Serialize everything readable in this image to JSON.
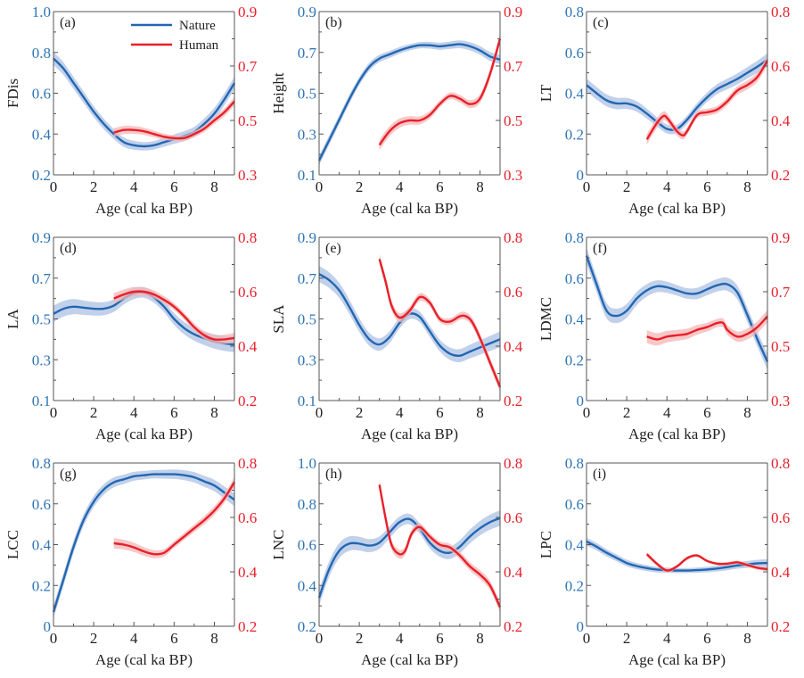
{
  "figure": {
    "legend": {
      "nature": "Nature",
      "human": "Human"
    },
    "colors": {
      "nature": "#2267b3",
      "nature_band": "#b7c9e6",
      "human": "#e8202a",
      "human_band": "#f4b5b5",
      "left_axis": "#2e75b6",
      "right_axis": "#e8202a"
    }
  },
  "chart_data": [
    {
      "type": "line",
      "panel": "(a)",
      "ylabel": "FDis",
      "xlabel": "Age (cal ka BP)",
      "xlim": [
        0,
        9
      ],
      "xticks": [
        0,
        2,
        4,
        6,
        8
      ],
      "ylim_left": [
        0.2,
        1.0
      ],
      "yticks_left": [
        "0.2",
        "0.4",
        "0.6",
        "0.8",
        "1.0"
      ],
      "ylim_right": [
        0.3,
        0.9
      ],
      "yticks_right": [
        "0.3",
        "0.5",
        "0.7",
        "0.9"
      ],
      "legend": "top-right",
      "series": [
        {
          "name": "Nature",
          "axis": "left",
          "x": [
            0,
            0.5,
            1,
            1.5,
            2,
            2.5,
            3,
            3.5,
            4,
            4.5,
            5,
            5.5,
            6,
            6.5,
            7,
            7.5,
            8,
            8.5,
            9
          ],
          "y": [
            0.77,
            0.72,
            0.65,
            0.58,
            0.51,
            0.45,
            0.4,
            0.36,
            0.345,
            0.34,
            0.345,
            0.36,
            0.375,
            0.39,
            0.41,
            0.45,
            0.5,
            0.57,
            0.65
          ],
          "band": 0.02
        },
        {
          "name": "Human",
          "axis": "right",
          "x": [
            3,
            3.5,
            4,
            4.5,
            5,
            5.5,
            6,
            6.5,
            7,
            7.5,
            8,
            8.5,
            9
          ],
          "y": [
            0.455,
            0.465,
            0.465,
            0.46,
            0.45,
            0.44,
            0.435,
            0.435,
            0.45,
            0.47,
            0.5,
            0.53,
            0.57
          ],
          "band": 0.01
        }
      ]
    },
    {
      "type": "line",
      "panel": "(b)",
      "ylabel": "Height",
      "xlabel": "Age (cal ka BP)",
      "xlim": [
        0,
        9
      ],
      "xticks": [
        0,
        2,
        4,
        6,
        8
      ],
      "ylim_left": [
        0.1,
        0.9
      ],
      "yticks_left": [
        "0.1",
        "0.3",
        "0.5",
        "0.7",
        "0.9"
      ],
      "ylim_right": [
        0.3,
        0.9
      ],
      "yticks_right": [
        "0.3",
        "0.5",
        "0.7",
        "0.9"
      ],
      "series": [
        {
          "name": "Nature",
          "axis": "left",
          "x": [
            0,
            0.5,
            1,
            1.5,
            2,
            2.5,
            3,
            3.5,
            4,
            4.5,
            5,
            5.5,
            6,
            6.5,
            7,
            7.5,
            8,
            8.5,
            9
          ],
          "y": [
            0.17,
            0.27,
            0.37,
            0.47,
            0.56,
            0.63,
            0.67,
            0.69,
            0.71,
            0.725,
            0.735,
            0.735,
            0.73,
            0.735,
            0.74,
            0.73,
            0.71,
            0.68,
            0.665
          ],
          "band": 0.015
        },
        {
          "name": "Human",
          "axis": "right",
          "x": [
            3,
            3.5,
            4,
            4.5,
            5,
            5.5,
            6,
            6.5,
            7,
            7.5,
            8,
            8.5,
            9
          ],
          "y": [
            0.41,
            0.46,
            0.49,
            0.5,
            0.5,
            0.52,
            0.56,
            0.59,
            0.58,
            0.56,
            0.58,
            0.67,
            0.8
          ],
          "band": 0.012
        }
      ]
    },
    {
      "type": "line",
      "panel": "(c)",
      "ylabel": "LT",
      "xlabel": "Age (cal ka BP)",
      "xlim": [
        0,
        9
      ],
      "xticks": [
        0,
        2,
        4,
        6,
        8
      ],
      "ylim_left": [
        0,
        0.8
      ],
      "yticks_left": [
        "0",
        "0.2",
        "0.4",
        "0.6",
        "0.8"
      ],
      "ylim_right": [
        0.2,
        0.8
      ],
      "yticks_right": [
        "0.2",
        "0.4",
        "0.6",
        "0.8"
      ],
      "series": [
        {
          "name": "Nature",
          "axis": "left",
          "x": [
            0,
            0.5,
            1,
            1.5,
            2,
            2.5,
            3,
            3.5,
            4,
            4.5,
            5,
            5.5,
            6,
            6.5,
            7,
            7.5,
            8,
            8.5,
            9
          ],
          "y": [
            0.44,
            0.4,
            0.365,
            0.35,
            0.35,
            0.335,
            0.3,
            0.26,
            0.225,
            0.225,
            0.27,
            0.33,
            0.38,
            0.42,
            0.445,
            0.47,
            0.5,
            0.53,
            0.565
          ],
          "band": 0.02
        },
        {
          "name": "Human",
          "axis": "right",
          "x": [
            3,
            3.5,
            3.8,
            4,
            4.5,
            4.8,
            5,
            5.5,
            6,
            6.5,
            7,
            7.5,
            8,
            8.5,
            9
          ],
          "y": [
            0.33,
            0.39,
            0.415,
            0.41,
            0.36,
            0.345,
            0.36,
            0.42,
            0.43,
            0.44,
            0.47,
            0.51,
            0.53,
            0.56,
            0.62
          ],
          "band": 0.012
        }
      ]
    },
    {
      "type": "line",
      "panel": "(d)",
      "ylabel": "LA",
      "xlabel": "Age (cal ka BP)",
      "xlim": [
        0,
        9
      ],
      "xticks": [
        0,
        2,
        4,
        6,
        8
      ],
      "ylim_left": [
        0.1,
        0.9
      ],
      "yticks_left": [
        "0.1",
        "0.3",
        "0.5",
        "0.7",
        "0.9"
      ],
      "ylim_right": [
        0.2,
        0.8
      ],
      "yticks_right": [
        "0.2",
        "0.4",
        "0.6",
        "0.8"
      ],
      "series": [
        {
          "name": "Nature",
          "axis": "left",
          "x": [
            0,
            0.5,
            1,
            1.5,
            2,
            2.5,
            3,
            3.5,
            4,
            4.5,
            5,
            5.5,
            6,
            6.5,
            7,
            7.5,
            8,
            8.5,
            9
          ],
          "y": [
            0.525,
            0.55,
            0.56,
            0.555,
            0.55,
            0.55,
            0.565,
            0.6,
            0.625,
            0.63,
            0.605,
            0.56,
            0.5,
            0.455,
            0.425,
            0.405,
            0.39,
            0.38,
            0.375
          ],
          "band": 0.025
        },
        {
          "name": "Human",
          "axis": "right",
          "x": [
            3,
            3.5,
            4,
            4.5,
            5,
            5.5,
            6,
            6.5,
            7,
            7.5,
            8,
            8.5,
            9
          ],
          "y": [
            0.575,
            0.59,
            0.6,
            0.6,
            0.59,
            0.57,
            0.545,
            0.51,
            0.47,
            0.44,
            0.425,
            0.425,
            0.43
          ],
          "band": 0.012
        }
      ]
    },
    {
      "type": "line",
      "panel": "(e)",
      "ylabel": "SLA",
      "xlabel": "Age (cal ka BP)",
      "xlim": [
        0,
        9
      ],
      "xticks": [
        0,
        2,
        4,
        6,
        8
      ],
      "ylim_left": [
        0.1,
        0.9
      ],
      "yticks_left": [
        "0.1",
        "0.3",
        "0.5",
        "0.7",
        "0.9"
      ],
      "ylim_right": [
        0.2,
        0.8
      ],
      "yticks_right": [
        "0.2",
        "0.4",
        "0.6",
        "0.8"
      ],
      "series": [
        {
          "name": "Nature",
          "axis": "left",
          "x": [
            0,
            0.5,
            1,
            1.5,
            2,
            2.5,
            3,
            3.5,
            4,
            4.5,
            5,
            5.5,
            6,
            6.5,
            7,
            7.5,
            8,
            8.5,
            9
          ],
          "y": [
            0.72,
            0.69,
            0.64,
            0.56,
            0.47,
            0.4,
            0.375,
            0.41,
            0.48,
            0.525,
            0.51,
            0.44,
            0.37,
            0.33,
            0.32,
            0.34,
            0.36,
            0.38,
            0.4
          ],
          "band": 0.025
        },
        {
          "name": "Human",
          "axis": "right",
          "x": [
            3,
            3.3,
            3.6,
            4,
            4.5,
            5,
            5.5,
            6,
            6.5,
            7,
            7.3,
            7.6,
            8,
            8.5,
            9
          ],
          "y": [
            0.72,
            0.64,
            0.55,
            0.505,
            0.53,
            0.58,
            0.56,
            0.5,
            0.49,
            0.51,
            0.51,
            0.49,
            0.43,
            0.34,
            0.25
          ],
          "band": 0.012
        }
      ]
    },
    {
      "type": "line",
      "panel": "(f)",
      "ylabel": "LDMC",
      "xlabel": "Age (cal ka BP)",
      "xlim": [
        0,
        9
      ],
      "xticks": [
        0,
        2,
        4,
        6,
        8
      ],
      "ylim_left": [
        0,
        0.8
      ],
      "yticks_left": [
        "0",
        "0.2",
        "0.4",
        "0.6",
        "0.8"
      ],
      "ylim_right": [
        0.3,
        0.9
      ],
      "yticks_right": [
        "0.3",
        "0.5",
        "0.7",
        "0.9"
      ],
      "series": [
        {
          "name": "Nature",
          "axis": "left",
          "x": [
            0,
            0.5,
            1,
            1.5,
            2,
            2.5,
            3,
            3.5,
            4,
            4.5,
            5,
            5.5,
            6,
            6.5,
            7,
            7.5,
            8,
            8.5,
            9
          ],
          "y": [
            0.71,
            0.57,
            0.44,
            0.415,
            0.44,
            0.5,
            0.54,
            0.56,
            0.555,
            0.54,
            0.525,
            0.525,
            0.545,
            0.565,
            0.57,
            0.53,
            0.42,
            0.3,
            0.19
          ],
          "band": 0.025
        },
        {
          "name": "Human",
          "axis": "right",
          "x": [
            3,
            3.5,
            4,
            4.5,
            5,
            5.5,
            6,
            6.5,
            6.8,
            7,
            7.5,
            8,
            8.5,
            9
          ],
          "y": [
            0.535,
            0.525,
            0.535,
            0.54,
            0.545,
            0.56,
            0.57,
            0.585,
            0.585,
            0.56,
            0.535,
            0.545,
            0.57,
            0.61
          ],
          "band": 0.015
        }
      ]
    },
    {
      "type": "line",
      "panel": "(g)",
      "ylabel": "LCC",
      "xlabel": "Age (cal ka BP)",
      "xlim": [
        0,
        9
      ],
      "xticks": [
        0,
        2,
        4,
        6,
        8
      ],
      "ylim_left": [
        0,
        0.8
      ],
      "yticks_left": [
        "0",
        "0.2",
        "0.4",
        "0.6",
        "0.8"
      ],
      "ylim_right": [
        0.2,
        0.8
      ],
      "yticks_right": [
        "0.2",
        "0.4",
        "0.6",
        "0.8"
      ],
      "series": [
        {
          "name": "Nature",
          "axis": "left",
          "x": [
            0,
            0.5,
            1,
            1.5,
            2,
            2.5,
            3,
            3.5,
            4,
            4.5,
            5,
            5.5,
            6,
            6.5,
            7,
            7.5,
            8,
            8.5,
            9
          ],
          "y": [
            0.07,
            0.23,
            0.39,
            0.52,
            0.61,
            0.67,
            0.705,
            0.72,
            0.735,
            0.74,
            0.745,
            0.745,
            0.745,
            0.74,
            0.73,
            0.71,
            0.69,
            0.655,
            0.62
          ],
          "band": 0.02
        },
        {
          "name": "Human",
          "axis": "right",
          "x": [
            3,
            3.5,
            4,
            4.5,
            5,
            5.5,
            6,
            6.5,
            7,
            7.5,
            8,
            8.5,
            9
          ],
          "y": [
            0.505,
            0.5,
            0.49,
            0.475,
            0.465,
            0.47,
            0.5,
            0.53,
            0.56,
            0.59,
            0.625,
            0.67,
            0.73
          ],
          "band": 0.012
        }
      ]
    },
    {
      "type": "line",
      "panel": "(h)",
      "ylabel": "LNC",
      "xlabel": "Age (cal ka BP)",
      "xlim": [
        0,
        9
      ],
      "xticks": [
        0,
        2,
        4,
        6,
        8
      ],
      "ylim_left": [
        0.2,
        1.0
      ],
      "yticks_left": [
        "0.2",
        "0.4",
        "0.6",
        "0.8",
        "1.0"
      ],
      "ylim_right": [
        0.2,
        0.8
      ],
      "yticks_right": [
        "0.2",
        "0.4",
        "0.6",
        "0.8"
      ],
      "series": [
        {
          "name": "Nature",
          "axis": "left",
          "x": [
            0,
            0.5,
            1,
            1.5,
            2,
            2.5,
            3,
            3.5,
            4,
            4.5,
            5,
            5.5,
            6,
            6.5,
            7,
            7.5,
            8,
            8.5,
            9
          ],
          "y": [
            0.34,
            0.48,
            0.57,
            0.605,
            0.605,
            0.595,
            0.61,
            0.66,
            0.71,
            0.725,
            0.68,
            0.61,
            0.57,
            0.56,
            0.59,
            0.64,
            0.68,
            0.71,
            0.73
          ],
          "band": 0.025
        },
        {
          "name": "Human",
          "axis": "right",
          "x": [
            3,
            3.3,
            3.6,
            4,
            4.3,
            4.6,
            5,
            5.5,
            6,
            6.5,
            7,
            7.5,
            8,
            8.5,
            9
          ],
          "y": [
            0.72,
            0.6,
            0.5,
            0.465,
            0.48,
            0.54,
            0.565,
            0.53,
            0.5,
            0.49,
            0.46,
            0.42,
            0.39,
            0.35,
            0.27
          ],
          "band": 0.012
        }
      ]
    },
    {
      "type": "line",
      "panel": "(i)",
      "ylabel": "LPC",
      "xlabel": "Age (cal ka BP)",
      "xlim": [
        0,
        9
      ],
      "xticks": [
        0,
        2,
        4,
        6,
        8
      ],
      "ylim_left": [
        0,
        0.8
      ],
      "yticks_left": [
        "0",
        "0.2",
        "0.4",
        "0.6",
        "0.8"
      ],
      "ylim_right": [
        0.2,
        0.8
      ],
      "yticks_right": [
        "0.2",
        "0.4",
        "0.6",
        "0.8"
      ],
      "series": [
        {
          "name": "Nature",
          "axis": "left",
          "x": [
            0,
            0.5,
            1,
            1.5,
            2,
            2.5,
            3,
            3.5,
            4,
            4.5,
            5,
            5.5,
            6,
            6.5,
            7,
            7.5,
            8,
            8.5,
            9
          ],
          "y": [
            0.415,
            0.39,
            0.36,
            0.335,
            0.31,
            0.295,
            0.285,
            0.278,
            0.275,
            0.273,
            0.273,
            0.275,
            0.278,
            0.283,
            0.29,
            0.298,
            0.303,
            0.308,
            0.31
          ],
          "band": 0.012
        },
        {
          "name": "Human",
          "axis": "right",
          "x": [
            3,
            3.5,
            4,
            4.5,
            5,
            5.5,
            6,
            6.5,
            7,
            7.5,
            8,
            8.5,
            9
          ],
          "y": [
            0.465,
            0.43,
            0.405,
            0.42,
            0.45,
            0.46,
            0.44,
            0.43,
            0.43,
            0.435,
            0.425,
            0.415,
            0.41
          ],
          "band": 0.005
        }
      ]
    }
  ]
}
